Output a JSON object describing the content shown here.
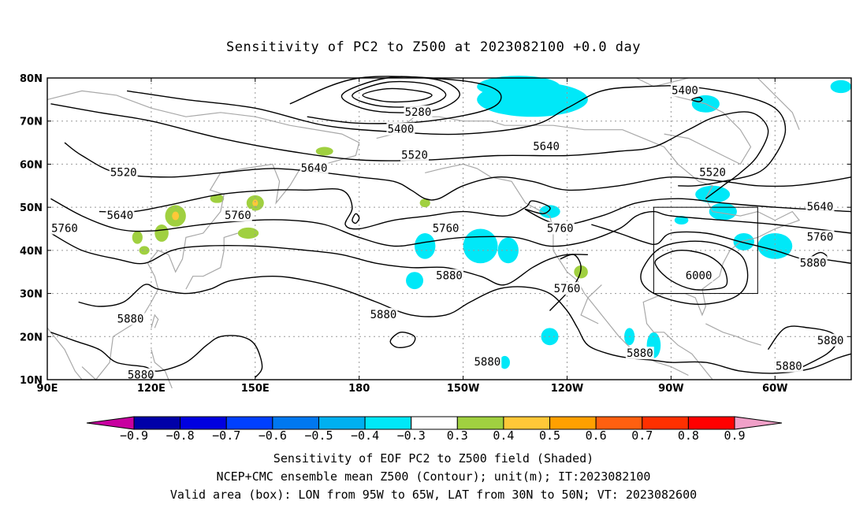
{
  "title": "Sensitivity of PC2 to Z500 at 2023082100 +0.0 day",
  "axes": {
    "lat_ticks": [
      "80N",
      "70N",
      "60N",
      "50N",
      "40N",
      "30N",
      "20N",
      "10N"
    ],
    "lat_values": [
      80,
      70,
      60,
      50,
      40,
      30,
      20,
      10
    ],
    "lon_ticks": [
      "90E",
      "120E",
      "150E",
      "180",
      "150W",
      "120W",
      "90W",
      "60W"
    ],
    "lon_values": [
      90,
      120,
      150,
      180,
      210,
      240,
      270,
      300
    ],
    "lon_range": [
      90,
      322
    ],
    "lat_range": [
      10,
      80
    ],
    "grid": "dotted"
  },
  "contour_labels": [
    {
      "text": "5400",
      "lon": 274,
      "lat": 77
    },
    {
      "text": "5280",
      "lon": 197,
      "lat": 72
    },
    {
      "text": "5400",
      "lon": 192,
      "lat": 68
    },
    {
      "text": "5520",
      "lon": 196,
      "lat": 62
    },
    {
      "text": "5640",
      "lon": 234,
      "lat": 64
    },
    {
      "text": "5520",
      "lon": 112,
      "lat": 58
    },
    {
      "text": "5640",
      "lon": 167,
      "lat": 59
    },
    {
      "text": "5520",
      "lon": 282,
      "lat": 58
    },
    {
      "text": "5640",
      "lon": 111,
      "lat": 48
    },
    {
      "text": "5760",
      "lon": 145,
      "lat": 48
    },
    {
      "text": "5760",
      "lon": 95,
      "lat": 45
    },
    {
      "text": "5760",
      "lon": 205,
      "lat": 45
    },
    {
      "text": "5760",
      "lon": 238,
      "lat": 45
    },
    {
      "text": "5640",
      "lon": 313,
      "lat": 50
    },
    {
      "text": "5760",
      "lon": 313,
      "lat": 43
    },
    {
      "text": "5880",
      "lon": 311,
      "lat": 37
    },
    {
      "text": "5880",
      "lon": 206,
      "lat": 34
    },
    {
      "text": "6000",
      "lon": 278,
      "lat": 34
    },
    {
      "text": "5760",
      "lon": 240,
      "lat": 31
    },
    {
      "text": "5880",
      "lon": 114,
      "lat": 24
    },
    {
      "text": "5880",
      "lon": 187,
      "lat": 25
    },
    {
      "text": "5880",
      "lon": 316,
      "lat": 19
    },
    {
      "text": "5880",
      "lon": 217,
      "lat": 14
    },
    {
      "text": "5880",
      "lon": 261,
      "lat": 16
    },
    {
      "text": "5880",
      "lon": 304,
      "lat": 13
    },
    {
      "text": "5880",
      "lon": 117,
      "lat": 11
    }
  ],
  "valid_box": {
    "lon_min": 265,
    "lon_max": 295,
    "lat_min": 30,
    "lat_max": 50
  },
  "colorbar": {
    "labels": [
      "−0.9",
      "−0.8",
      "−0.7",
      "−0.6",
      "−0.5",
      "−0.4",
      "−0.3",
      "0.3",
      "0.4",
      "0.5",
      "0.6",
      "0.7",
      "0.8",
      "0.9"
    ],
    "end_low_color": "#c800a0",
    "end_high_color": "#f0a0c8",
    "colors": [
      "#0000a8",
      "#0000e0",
      "#0040ff",
      "#0078f0",
      "#00b0f0",
      "#00e8f8",
      "#ffffff",
      "#a0d040",
      "#ffc838",
      "#ffa000",
      "#ff6010",
      "#ff3000",
      "#ff0000"
    ]
  },
  "shading_colors": {
    "negative": "#00e8f8",
    "negative_strong": "#00b0f0",
    "positive": "#a0d040",
    "positive_strong": "#ffc838"
  },
  "footer": {
    "line1": "Sensitivity of EOF PC2 to Z500 field (Shaded)",
    "line2": "NCEP+CMC ensemble mean Z500 (Contour); unit(m); IT:2023082100",
    "line3": "Valid area (box): LON from 95W to 65W, LAT from 30N to 50N; VT: 2023082600"
  }
}
